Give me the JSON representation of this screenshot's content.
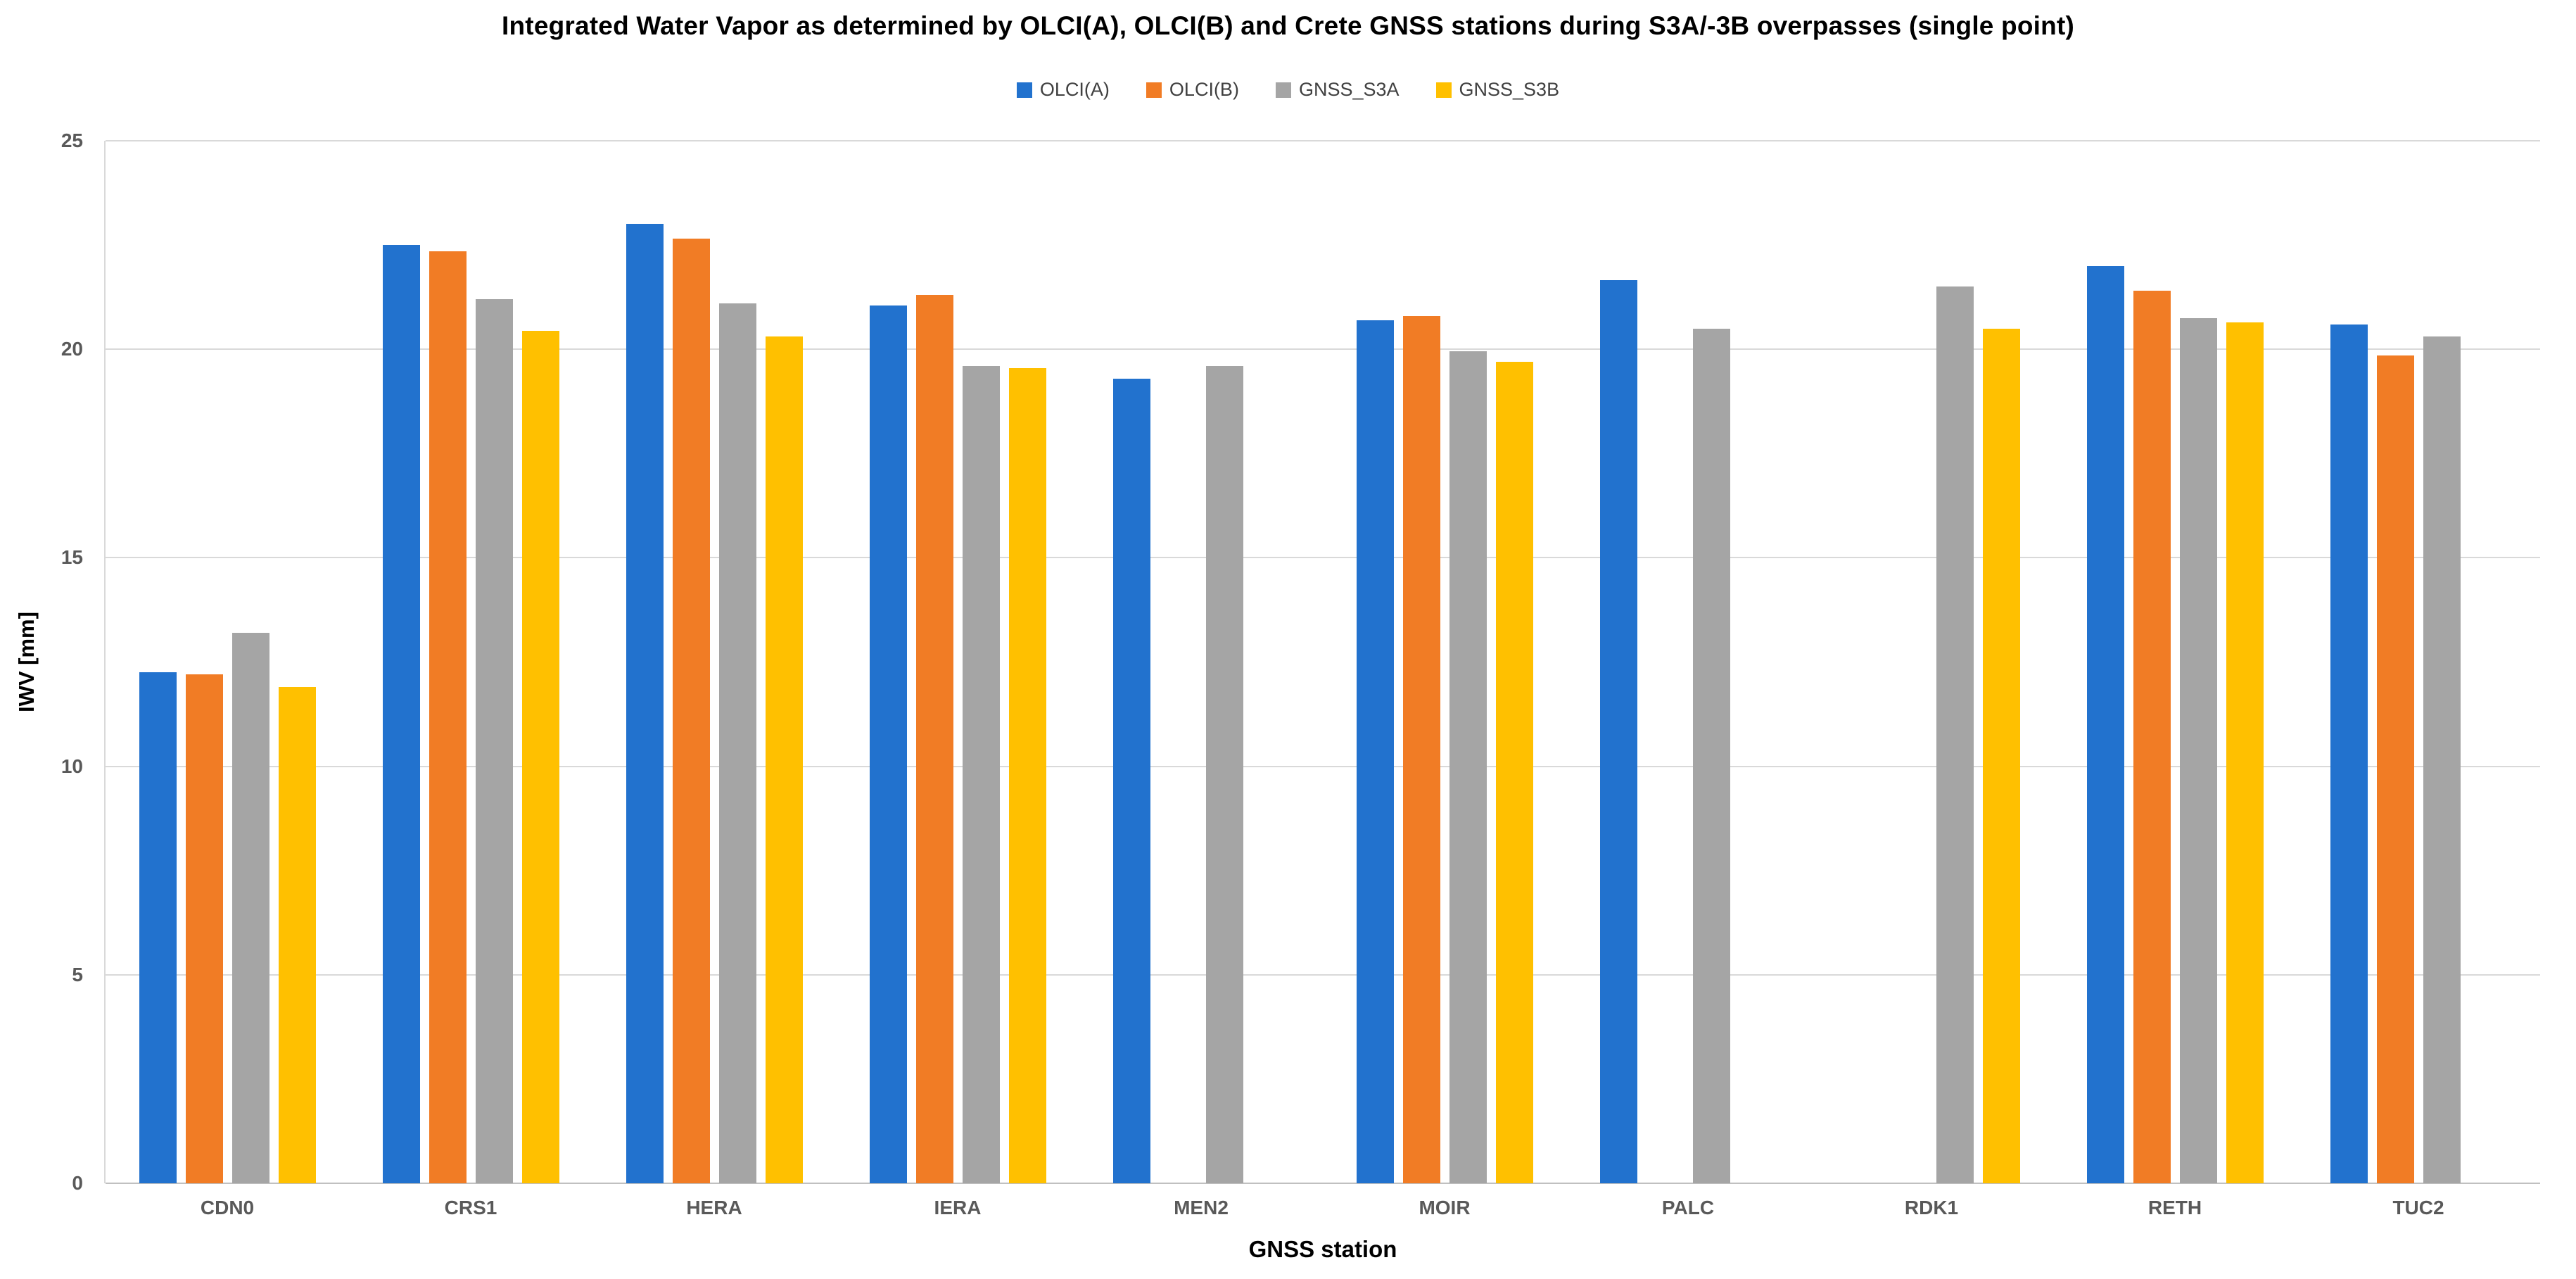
{
  "title": "Integrated Water Vapor as determined by OLCI(A), OLCI(B) and Crete GNSS stations during S3A/-3B overpasses (single point)",
  "colors": {
    "grid": "#d9d9d9",
    "axis_zero_line": "#c0c0c0",
    "tick_text": "#595959",
    "legend_text": "#404040"
  },
  "chart_data": {
    "type": "bar",
    "title": "Integrated Water Vapor as determined by OLCI(A), OLCI(B) and Crete GNSS stations during S3A/-3B overpasses (single point)",
    "xlabel": "GNSS station",
    "ylabel": "IWV [mm]",
    "ylim": [
      0,
      25
    ],
    "ytick_step": 5,
    "yticks": [
      "0",
      "5",
      "10",
      "15",
      "20",
      "25"
    ],
    "grid": true,
    "legend_position": "top-center",
    "categories": [
      "CDN0",
      "CRS1",
      "HERA",
      "IERA",
      "MEN2",
      "MOIR",
      "PALC",
      "RDK1",
      "RETH",
      "TUC2"
    ],
    "series": [
      {
        "name": "OLCI(A)",
        "color": "#2272ce",
        "values": [
          12.25,
          22.5,
          23.0,
          21.05,
          19.3,
          20.7,
          21.65,
          null,
          22.0,
          20.6
        ]
      },
      {
        "name": "OLCI(B)",
        "color": "#f17c25",
        "values": [
          12.2,
          22.35,
          22.65,
          21.3,
          null,
          20.8,
          null,
          null,
          21.4,
          19.85
        ]
      },
      {
        "name": "GNSS_S3A",
        "color": "#a5a5a5",
        "values": [
          13.2,
          21.2,
          21.1,
          19.6,
          19.6,
          19.95,
          20.5,
          21.5,
          20.75,
          20.3
        ]
      },
      {
        "name": "GNSS_S3B",
        "color": "#ffc000",
        "values": [
          11.9,
          20.45,
          20.3,
          19.55,
          null,
          19.7,
          null,
          20.5,
          20.65,
          null
        ]
      }
    ]
  }
}
